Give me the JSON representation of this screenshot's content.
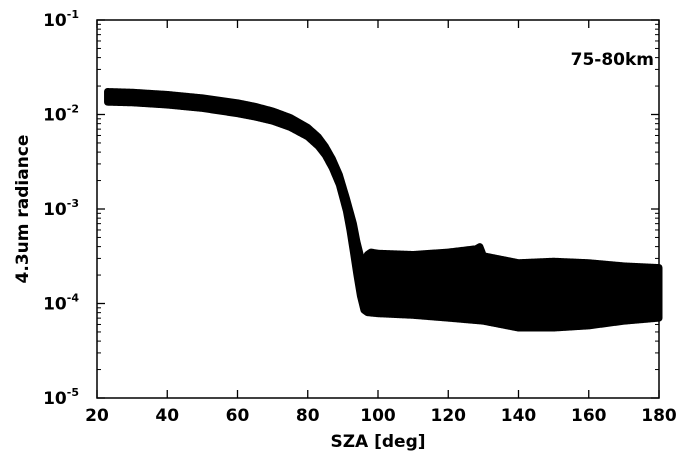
{
  "chart_data": {
    "type": "scatter",
    "title": "",
    "annotation": "75-80km",
    "xlabel": "SZA [deg]",
    "ylabel": "4.3um radiance",
    "xlim": [
      20,
      180
    ],
    "ylim": [
      1e-05,
      0.1
    ],
    "yscale": "log",
    "xticks": [
      "20",
      "40",
      "60",
      "80",
      "100",
      "120",
      "140",
      "160",
      "180"
    ],
    "yticks": [
      {
        "base": "10",
        "exp": "-5"
      },
      {
        "base": "10",
        "exp": "-4"
      },
      {
        "base": "10",
        "exp": "-3"
      },
      {
        "base": "10",
        "exp": "-2"
      },
      {
        "base": "10",
        "exp": "-1"
      }
    ],
    "marker_color": "#000000",
    "grid": false,
    "series": [
      {
        "upper_envelope": {
          "x": [
            23,
            30,
            40,
            50,
            60,
            65,
            70,
            75,
            80,
            83,
            85,
            87,
            89,
            91,
            93,
            94,
            95,
            96,
            97,
            98,
            100,
            110,
            120,
            128,
            129,
            130,
            140,
            150,
            160,
            170,
            180
          ],
          "y": [
            0.0175,
            0.0172,
            0.0163,
            0.015,
            0.0133,
            0.0122,
            0.0109,
            0.0093,
            0.0073,
            0.0058,
            0.0046,
            0.0034,
            0.0023,
            0.0013,
            0.0007,
            0.00045,
            0.00032,
            0.00028,
            0.00033,
            0.00035,
            0.00034,
            0.00033,
            0.00035,
            0.00038,
            0.0004,
            0.00032,
            0.00027,
            0.00028,
            0.00027,
            0.00025,
            0.00024
          ]
        },
        "lower_envelope": {
          "x": [
            23,
            30,
            40,
            50,
            60,
            65,
            70,
            75,
            80,
            83,
            85,
            87,
            89,
            91,
            92,
            93,
            94,
            95,
            96,
            97,
            100,
            110,
            120,
            130,
            140,
            150,
            160,
            170,
            180
          ],
          "y": [
            0.0135,
            0.0133,
            0.0126,
            0.0116,
            0.0102,
            0.0094,
            0.0085,
            0.0073,
            0.0058,
            0.0046,
            0.0037,
            0.0027,
            0.0018,
            0.00095,
            0.0006,
            0.00035,
            0.0002,
            0.00012,
            8.5e-05,
            8e-05,
            7.8e-05,
            7.5e-05,
            7e-05,
            6.5e-05,
            5.5e-05,
            5.5e-05,
            5.8e-05,
            6.5e-05,
            7e-05
          ]
        }
      }
    ]
  }
}
